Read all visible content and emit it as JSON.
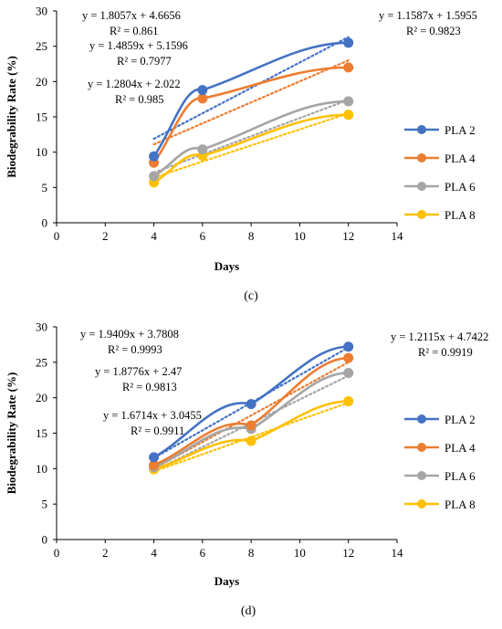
{
  "chart_data": [
    {
      "type": "line",
      "panel_label": "(c)",
      "xlabel": "Days",
      "ylabel": "Biodegrability Rate (%)",
      "xlim": [
        0,
        14
      ],
      "ylim": [
        0,
        30
      ],
      "xticks": [
        "0",
        "2",
        "4",
        "6",
        "8",
        "10",
        "12",
        "14"
      ],
      "yticks": [
        "0",
        "5",
        "10",
        "15",
        "20",
        "25",
        "30"
      ],
      "grid": false,
      "legend_position": "right",
      "x": [
        4,
        6,
        12
      ],
      "series": [
        {
          "name": "PLA 2",
          "color": "#4472c4",
          "values": [
            9.4,
            18.8,
            25.5
          ]
        },
        {
          "name": "PLA 4",
          "color": "#ed7d31",
          "values": [
            8.5,
            17.6,
            22.0
          ]
        },
        {
          "name": "PLA 6",
          "color": "#a5a5a5",
          "values": [
            6.6,
            10.4,
            17.2
          ]
        },
        {
          "name": "PLA 8",
          "color": "#ffc000",
          "values": [
            5.7,
            9.5,
            15.3
          ]
        }
      ],
      "trendline_x": [
        4,
        12
      ],
      "trendlines": [
        {
          "series": "PLA 2",
          "values": [
            11.9,
            26.3
          ]
        },
        {
          "series": "PLA 4",
          "values": [
            11.1,
            23.0
          ]
        },
        {
          "series": "PLA 6",
          "values": [
            7.1,
            17.4
          ]
        },
        {
          "series": "PLA 8",
          "values": [
            6.4,
            15.5
          ]
        }
      ],
      "equations": [
        {
          "eq": "y = 1.8057x + 4.6656",
          "r2": "R² = 0.861"
        },
        {
          "eq": "y = 1.4859x + 5.1596",
          "r2": "R² = 0.7977"
        },
        {
          "eq": "y = 1.2804x + 2.022",
          "r2": "R² = 0.985"
        },
        {
          "eq": "y = 1.1587x + 1.5955",
          "r2": "R² = 0.9823"
        }
      ]
    },
    {
      "type": "line",
      "panel_label": "(d)",
      "xlabel": "Days",
      "ylabel": "Biodegrability Rate (%)",
      "xlim": [
        0,
        14
      ],
      "ylim": [
        0,
        30
      ],
      "xticks": [
        "0",
        "2",
        "4",
        "6",
        "8",
        "10",
        "12",
        "14"
      ],
      "yticks": [
        "0",
        "5",
        "10",
        "15",
        "20",
        "25",
        "30"
      ],
      "grid": false,
      "legend_position": "right",
      "x": [
        4,
        8,
        12
      ],
      "series": [
        {
          "name": "PLA 2",
          "color": "#4472c4",
          "values": [
            11.6,
            19.1,
            27.2
          ]
        },
        {
          "name": "PLA 4",
          "color": "#ed7d31",
          "values": [
            10.5,
            16.1,
            25.6
          ]
        },
        {
          "name": "PLA 6",
          "color": "#a5a5a5",
          "values": [
            10.2,
            15.6,
            23.5
          ]
        },
        {
          "name": "PLA 8",
          "color": "#ffc000",
          "values": [
            9.9,
            13.9,
            19.5
          ]
        }
      ],
      "trendline_x": [
        4,
        12
      ],
      "trendlines": [
        {
          "series": "PLA 2",
          "values": [
            11.5,
            27.1
          ]
        },
        {
          "series": "PLA 4",
          "values": [
            10.0,
            25.0
          ]
        },
        {
          "series": "PLA 6",
          "values": [
            9.7,
            23.1
          ]
        },
        {
          "series": "PLA 8",
          "values": [
            9.6,
            19.3
          ]
        }
      ],
      "equations": [
        {
          "eq": "y = 1.9409x + 3.7808",
          "r2": "R² = 0.9993"
        },
        {
          "eq": "y = 1.8776x + 2.47",
          "r2": "R² = 0.9813"
        },
        {
          "eq": "y = 1.6714x + 3.0455",
          "r2": "R² = 0.9911"
        },
        {
          "eq": "y = 1.2115x + 4.7422",
          "r2": "R² = 0.9919"
        }
      ]
    }
  ]
}
